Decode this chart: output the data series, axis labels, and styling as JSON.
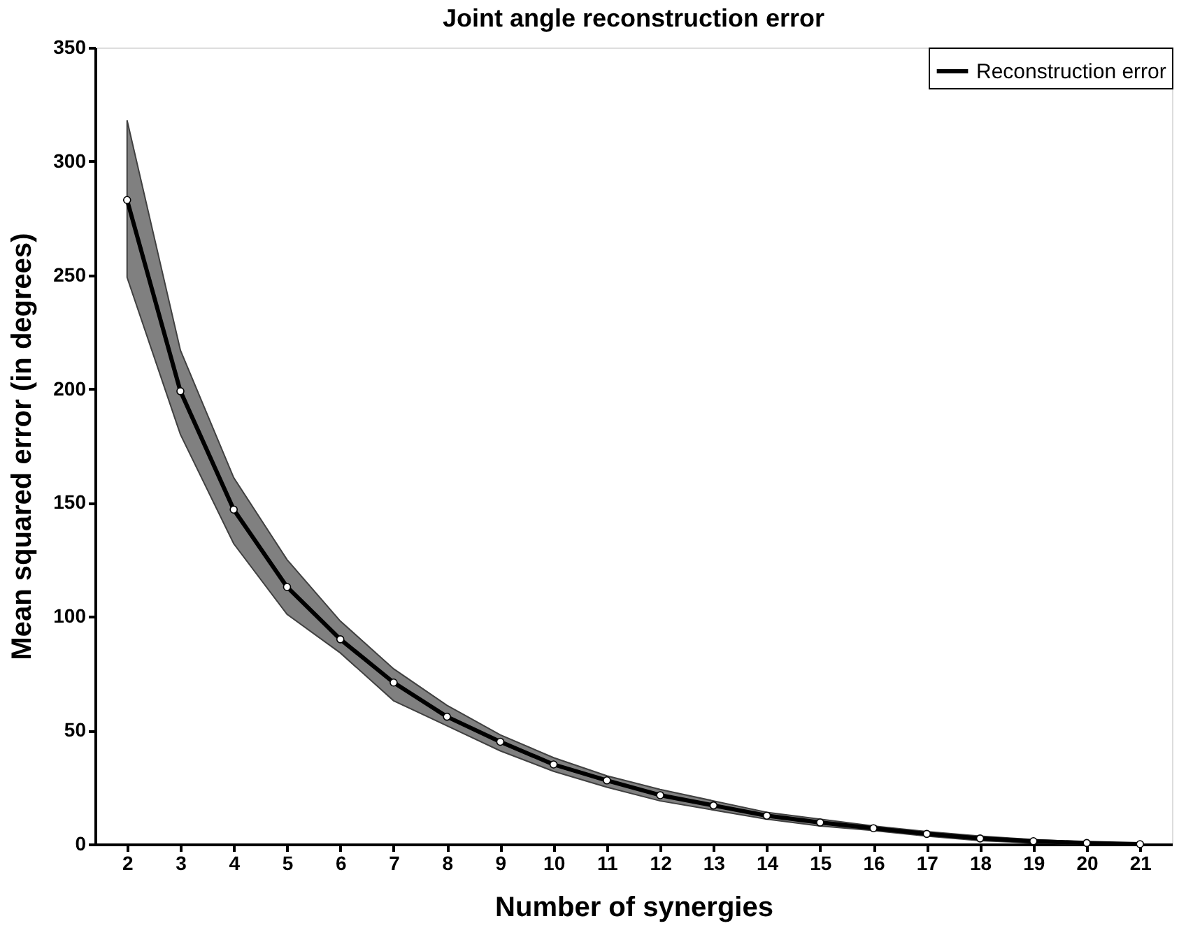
{
  "chart_data": {
    "type": "line",
    "title": "Joint angle reconstruction error",
    "xlabel": "Number of synergies",
    "ylabel": "Mean squared error (in degrees)",
    "x": [
      2,
      3,
      4,
      5,
      6,
      7,
      8,
      9,
      10,
      11,
      12,
      13,
      14,
      15,
      16,
      17,
      18,
      19,
      20,
      21
    ],
    "series": [
      {
        "name": "Reconstruction error",
        "color": "#000000",
        "values": [
          283,
          199,
          147,
          113,
          90,
          71,
          56,
          45,
          35,
          28,
          21.5,
          17,
          12.5,
          9.5,
          7,
          4.5,
          2.5,
          1.3,
          0.5,
          0
        ],
        "upper": [
          318,
          217,
          161,
          125,
          98,
          77,
          61,
          48,
          38,
          30,
          24,
          19,
          14,
          11,
          8,
          5.5,
          3.5,
          2,
          1,
          0.3
        ],
        "lower": [
          249,
          180,
          132,
          101,
          84,
          63,
          52,
          41,
          32,
          25,
          19,
          15,
          11,
          8,
          6,
          3.5,
          1.5,
          0.5,
          0,
          0
        ]
      }
    ],
    "xlim": [
      1.4,
      21.6
    ],
    "xticks": [
      2,
      3,
      4,
      5,
      6,
      7,
      8,
      9,
      10,
      11,
      12,
      13,
      14,
      15,
      16,
      17,
      18,
      19,
      20,
      21
    ],
    "ylim": [
      0,
      350
    ],
    "yticks": [
      0,
      50,
      100,
      150,
      200,
      250,
      300,
      350
    ],
    "grid": false,
    "legend": "top right",
    "marker": "circle",
    "line_style": "solid"
  }
}
